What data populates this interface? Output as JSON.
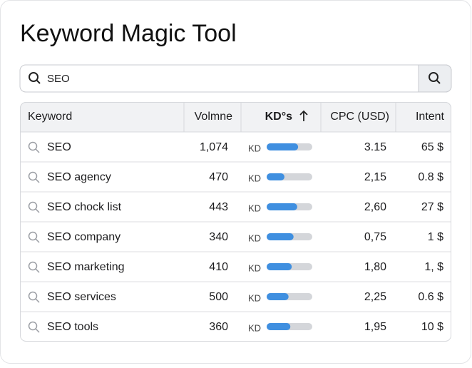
{
  "header": {
    "title": "Keyword Magic Tool"
  },
  "search": {
    "query": "SEO"
  },
  "table": {
    "columns": [
      "Keyword",
      "Volmne",
      "KD°s",
      "CPC (USD)",
      "Intent"
    ],
    "kd_label": "KD",
    "rows": [
      {
        "keyword": "SEO",
        "volume": "1,074",
        "kd": 69,
        "cpc": "3.15",
        "intent": "65 $"
      },
      {
        "keyword": "SEO agency",
        "volume": "470",
        "kd": 39,
        "cpc": "2,15",
        "intent": "0.8 $"
      },
      {
        "keyword": "SEO chock list",
        "volume": "443",
        "kd": 67,
        "cpc": "2,60",
        "intent": "27 $"
      },
      {
        "keyword": "SEO company",
        "volume": "340",
        "kd": 59,
        "cpc": "0,75",
        "intent": "1 $"
      },
      {
        "keyword": "SEO marketing",
        "volume": "410",
        "kd": 55,
        "cpc": "1,80",
        "intent": "1, $"
      },
      {
        "keyword": "SEO services",
        "volume": "500",
        "kd": 48,
        "cpc": "2,25",
        "intent": "0.6 $"
      },
      {
        "keyword": "SEO tools",
        "volume": "360",
        "kd": 52,
        "cpc": "1,95",
        "intent": "10 $"
      }
    ]
  }
}
